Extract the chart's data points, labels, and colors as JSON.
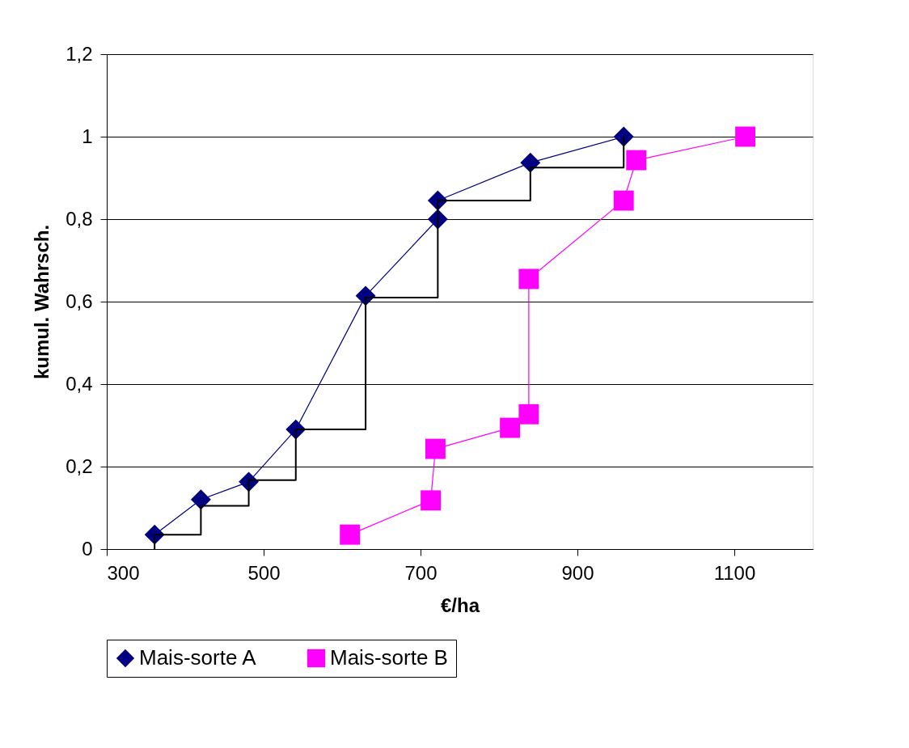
{
  "chart_data": {
    "type": "line",
    "xlabel": "€/ha",
    "ylabel": "kumul. Wahrsch.",
    "xlim": [
      300,
      1200
    ],
    "xticks": [
      300,
      500,
      700,
      900,
      1100
    ],
    "ylim": [
      0,
      1.2
    ],
    "yticks": [
      0,
      {
        "value": 0.2,
        "label": "0,2"
      },
      {
        "value": 0.4,
        "label": "0,4"
      },
      {
        "value": 0.6,
        "label": "0,6"
      },
      {
        "value": 0.8,
        "label": "0,8"
      },
      1,
      {
        "value": 1.2,
        "label": "1,2"
      }
    ],
    "grid": "y",
    "legend": "bottom",
    "line_style": "solid",
    "series": [
      {
        "name": "Mais-sorte A",
        "color": "#000080",
        "marker": "diamond",
        "x": [
          361,
          420,
          481,
          541,
          630,
          722,
          722,
          840,
          959
        ],
        "values": [
          0.035,
          0.12,
          0.163,
          0.29,
          0.614,
          0.8,
          0.845,
          0.937,
          1.0
        ]
      },
      {
        "name": "Mais-sorte B",
        "color": "#ff00ff",
        "marker": "square",
        "x": [
          610,
          713,
          719,
          814,
          838,
          838,
          959,
          975,
          1114
        ],
        "values": [
          0.035,
          0.118,
          0.243,
          0.294,
          0.327,
          0.655,
          0.845,
          0.943,
          1.0
        ]
      },
      {
        "type": "step",
        "color": "#000000",
        "marker": "none",
        "x": [
          361,
          361,
          420,
          481,
          541,
          630,
          722,
          840,
          959
        ],
        "values": [
          0,
          0.035,
          0.105,
          0.167,
          0.29,
          0.61,
          0.845,
          0.925,
          1.0
        ]
      }
    ]
  }
}
